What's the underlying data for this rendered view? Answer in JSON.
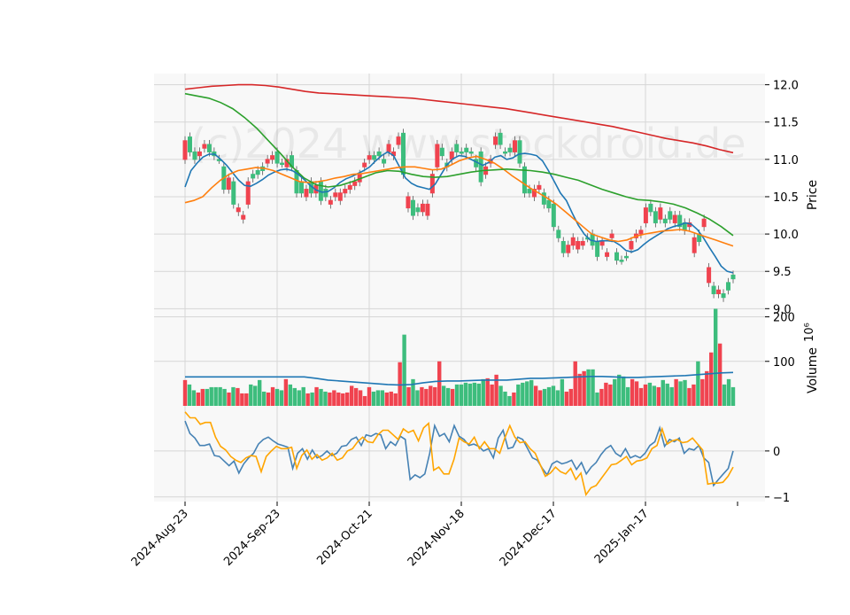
{
  "watermark": "(c)2024 www.stockdroid.de",
  "colors": {
    "up": "#3dbd7d",
    "down": "#f0434f",
    "panel_bg": "#f8f8f8",
    "grid": "#d6d6d6",
    "ma_short": "#1f77b4",
    "ma_mid": "#ff7f0e",
    "ma_long": "#2ca02c",
    "ma_xlong": "#d62728",
    "vol_avg": "#1f77b4",
    "osc_a": "#4682b4",
    "osc_b": "#ffa500"
  },
  "chart_data": [
    {
      "type": "candlestick",
      "panel": "price",
      "ylabel": "Price",
      "ylim": [
        8.98,
        12.15
      ],
      "yticks": [
        "9.0",
        "9.5",
        "10.0",
        "10.5",
        "11.0",
        "11.5",
        "12.0"
      ],
      "x_tick_labels": [
        "2024-Aug-23",
        "2024-Sep-23",
        "2024-Oct-21",
        "2024-Nov-18",
        "2024-Dec-17",
        "2025-Jan-17"
      ],
      "grid": true,
      "candles_close": [
        11.0,
        11.3,
        11.1,
        11.05,
        11.15,
        11.2,
        11.1,
        11.0,
        10.9,
        10.6,
        10.7,
        10.3,
        10.2,
        10.4,
        10.8,
        10.85,
        10.9,
        10.95,
        11.0,
        11.1,
        10.95,
        10.9,
        11.05,
        10.85,
        10.7,
        10.5,
        10.7,
        10.55,
        10.7,
        10.6,
        10.4,
        10.5,
        10.45,
        10.55,
        10.6,
        10.65,
        10.7,
        10.9,
        11.0,
        11.05,
        11.1,
        11.0,
        11.1,
        11.05,
        11.2,
        11.35,
        10.35,
        10.45,
        10.35,
        10.3,
        10.25,
        10.55,
        10.9,
        11.15,
        10.95,
        11.0,
        11.2,
        11.1,
        11.15,
        11.1,
        11.0,
        11.1,
        10.8,
        10.95,
        11.2,
        11.35,
        11.1,
        11.15,
        11.1,
        11.25,
        10.9,
        10.6,
        10.5,
        10.6,
        10.55,
        10.45,
        10.4,
        10.05,
        9.9,
        9.75,
        9.85,
        9.8,
        9.85,
        9.95,
        10.0,
        9.9,
        9.85,
        9.7,
        9.95,
        9.75,
        9.65,
        9.7,
        9.8,
        9.95,
        10.0,
        10.15,
        10.4,
        10.3,
        10.2,
        10.2,
        10.3,
        10.15,
        10.25,
        10.15,
        10.1,
        9.75,
        10.0,
        10.1,
        9.35,
        9.3,
        9.2,
        9.2,
        9.35,
        9.45
      ],
      "candles_open": [
        11.25,
        11.1,
        11.0,
        11.1,
        11.2,
        11.1,
        11.05,
        11.0,
        10.6,
        10.75,
        10.4,
        10.35,
        10.25,
        10.7,
        10.75,
        10.8,
        10.85,
        11.0,
        11.05,
        10.95,
        10.95,
        11.0,
        10.9,
        10.55,
        10.55,
        10.6,
        10.55,
        10.65,
        10.45,
        10.5,
        10.45,
        10.55,
        10.55,
        10.6,
        10.65,
        10.7,
        10.8,
        10.95,
        11.05,
        11.0,
        11.05,
        10.95,
        11.2,
        11.1,
        11.3,
        10.8,
        10.5,
        10.25,
        10.3,
        10.4,
        10.4,
        10.8,
        11.2,
        11.05,
        10.9,
        11.1,
        11.1,
        11.1,
        11.1,
        11.1,
        10.9,
        10.7,
        10.9,
        11.0,
        11.3,
        11.2,
        11.1,
        11.1,
        11.25,
        10.95,
        10.55,
        10.55,
        10.6,
        10.65,
        10.4,
        10.35,
        10.1,
        9.95,
        9.75,
        9.85,
        9.95,
        9.9,
        9.9,
        9.95,
        9.85,
        9.7,
        9.9,
        9.75,
        10.0,
        9.65,
        9.65,
        9.7,
        9.9,
        10.0,
        10.05,
        10.35,
        10.3,
        10.15,
        10.35,
        10.15,
        10.2,
        10.25,
        10.1,
        10.05,
        10.15,
        9.95,
        9.9,
        10.2,
        9.55,
        9.2,
        9.25,
        9.15,
        9.25,
        9.4
      ],
      "moving_averages": [
        {
          "values": [
            10.63,
            10.85,
            10.95,
            11.03,
            11.07,
            11.07,
            11.0,
            10.92,
            10.82,
            10.72,
            10.65,
            10.64,
            10.68,
            10.73,
            10.79,
            10.83,
            10.86,
            10.87,
            10.85,
            10.8,
            10.73,
            10.65,
            10.59,
            10.56,
            10.57,
            10.62,
            10.69,
            10.74,
            10.77,
            10.81,
            10.85,
            10.9,
            10.98,
            11.05,
            11.1,
            11.05,
            10.9,
            10.75,
            10.68,
            10.64,
            10.62,
            10.6,
            10.67,
            10.8,
            10.93,
            11.01,
            11.05,
            11.04,
            11.0,
            10.96,
            10.92,
            10.96,
            11.03,
            11.05,
            11.0,
            11.02,
            11.07,
            11.08,
            11.07,
            11.05,
            10.98,
            10.85,
            10.7,
            10.55,
            10.45,
            10.28,
            10.12,
            10.0,
            9.92,
            9.9,
            9.91,
            9.91,
            9.9,
            9.85,
            9.78,
            9.76,
            9.79,
            9.86,
            9.92,
            9.97,
            10.02,
            10.07,
            10.1,
            10.12,
            10.15,
            10.13,
            10.06,
            9.95,
            9.82,
            9.7,
            9.57,
            9.5,
            9.48
          ]
        },
        {
          "values": [
            10.42,
            10.45,
            10.5,
            10.62,
            10.72,
            10.8,
            10.85,
            10.87,
            10.89,
            10.88,
            10.85,
            10.8,
            10.75,
            10.7,
            10.69,
            10.7,
            10.72,
            10.75,
            10.77,
            10.8,
            10.81,
            10.83,
            10.85,
            10.87,
            10.89,
            10.9,
            10.9,
            10.88,
            10.86,
            10.87,
            10.92,
            10.98,
            11.02,
            11.04,
            11.0,
            10.95,
            10.87,
            10.78,
            10.7,
            10.62,
            10.55,
            10.48,
            10.4,
            10.3,
            10.2,
            10.1,
            10.0,
            9.96,
            9.92,
            9.9,
            9.92,
            9.97,
            10.0,
            10.02,
            10.04,
            10.05,
            10.06,
            10.04,
            10.0,
            9.96,
            9.92,
            9.88,
            9.84
          ]
        },
        {
          "values": [
            11.88,
            11.85,
            11.82,
            11.76,
            11.68,
            11.56,
            11.42,
            11.25,
            11.08,
            10.9,
            10.75,
            10.66,
            10.63,
            10.65,
            10.7,
            10.76,
            10.82,
            10.85,
            10.84,
            10.8,
            10.77,
            10.76,
            10.77,
            10.8,
            10.83,
            10.85,
            10.86,
            10.87,
            10.86,
            10.85,
            10.83,
            10.8,
            10.76,
            10.72,
            10.66,
            10.6,
            10.55,
            10.5,
            10.46,
            10.45,
            10.43,
            10.4,
            10.35,
            10.28,
            10.2,
            10.1,
            9.98
          ]
        },
        {
          "values": [
            11.94,
            11.96,
            11.98,
            11.99,
            12.0,
            12.0,
            11.99,
            11.97,
            11.94,
            11.91,
            11.89,
            11.88,
            11.87,
            11.86,
            11.85,
            11.84,
            11.83,
            11.82,
            11.8,
            11.78,
            11.76,
            11.74,
            11.72,
            11.7,
            11.68,
            11.65,
            11.62,
            11.59,
            11.56,
            11.53,
            11.5,
            11.47,
            11.44,
            11.4,
            11.36,
            11.32,
            11.28,
            11.25,
            11.22,
            11.18,
            11.13,
            11.09
          ]
        }
      ]
    },
    {
      "type": "bar",
      "panel": "volume",
      "ylabel": "Volume",
      "scale_label": "10⁶",
      "ylim": [
        0,
        215
      ],
      "yticks": [
        "100",
        "200"
      ],
      "values": [
        58,
        48,
        35,
        30,
        38,
        38,
        42,
        42,
        42,
        38,
        30,
        42,
        40,
        28,
        28,
        48,
        45,
        58,
        32,
        30,
        42,
        38,
        35,
        60,
        48,
        40,
        35,
        42,
        28,
        30,
        42,
        38,
        32,
        30,
        35,
        30,
        28,
        30,
        45,
        40,
        35,
        22,
        42,
        32,
        35,
        35,
        30,
        32,
        28,
        98,
        160,
        42,
        60,
        35,
        42,
        38,
        45,
        42,
        100,
        45,
        40,
        38,
        48,
        48,
        52,
        50,
        52,
        50,
        60,
        62,
        48,
        70,
        45,
        32,
        22,
        30,
        48,
        52,
        55,
        58,
        45,
        35,
        38,
        42,
        45,
        35,
        60,
        32,
        38,
        100,
        72,
        78,
        82,
        82,
        30,
        38,
        52,
        48,
        60,
        70,
        66,
        42,
        60,
        55,
        40,
        48,
        52,
        45,
        42,
        58,
        50,
        42,
        60,
        55,
        58,
        40,
        48,
        100,
        60,
        78,
        120,
        218,
        140,
        48,
        60,
        42
      ],
      "avg_values": [
        65,
        65,
        65,
        65,
        65,
        65,
        65,
        65,
        65,
        65,
        65,
        62,
        58,
        56,
        54,
        52,
        50,
        48,
        47,
        48,
        52,
        55,
        56,
        56,
        57,
        58,
        58,
        58,
        60,
        62,
        62,
        63,
        64,
        65,
        66,
        66,
        65,
        64,
        64,
        65,
        66,
        67,
        68,
        70,
        72,
        74,
        75
      ]
    },
    {
      "type": "line",
      "panel": "oscillator",
      "ylim": [
        -1.1,
        0.98
      ],
      "yticks": [
        "−1",
        "0"
      ],
      "series": [
        {
          "values": [
            0.65,
            0.38,
            0.28,
            0.12,
            0.12,
            0.15,
            -0.1,
            -0.12,
            -0.22,
            -0.32,
            -0.22,
            -0.48,
            -0.28,
            -0.15,
            -0.05,
            0.15,
            0.25,
            0.3,
            0.22,
            0.15,
            0.12,
            0.08,
            -0.38,
            -0.05,
            0.05,
            -0.18,
            0.02,
            -0.15,
            -0.1,
            0.0,
            -0.1,
            -0.05,
            0.1,
            0.12,
            0.25,
            0.3,
            0.12,
            0.35,
            0.32,
            0.38,
            0.35,
            0.05,
            0.2,
            0.12,
            0.32,
            0.25,
            -0.62,
            -0.52,
            -0.58,
            -0.5,
            -0.05,
            0.55,
            0.32,
            0.38,
            0.2,
            0.55,
            0.32,
            0.25,
            0.12,
            0.15,
            0.1,
            0.0,
            0.05,
            -0.15,
            0.28,
            0.45,
            0.05,
            0.08,
            0.3,
            0.25,
            0.05,
            -0.15,
            -0.2,
            -0.38,
            -0.52,
            -0.28,
            -0.22,
            -0.28,
            -0.25,
            -0.2,
            -0.4,
            -0.25,
            -0.5,
            -0.35,
            -0.25,
            -0.08,
            0.05,
            0.12,
            -0.05,
            -0.12,
            0.05,
            -0.15,
            -0.1,
            -0.15,
            -0.05,
            0.12,
            0.2,
            0.5,
            0.1,
            0.25,
            0.2,
            0.28,
            -0.05,
            0.05,
            0.02,
            0.12,
            -0.15,
            -0.25,
            -0.75,
            -0.62,
            -0.5,
            -0.38,
            0.0
          ]
        },
        {
          "values": [
            0.85,
            0.72,
            0.72,
            0.58,
            0.62,
            0.62,
            0.3,
            0.1,
            0.02,
            -0.12,
            -0.2,
            -0.25,
            -0.15,
            -0.1,
            -0.12,
            -0.45,
            -0.12,
            0.0,
            0.1,
            0.05,
            0.05,
            0.08,
            -0.38,
            -0.1,
            0.02,
            -0.18,
            -0.08,
            -0.2,
            -0.15,
            -0.05,
            -0.2,
            -0.15,
            0.0,
            0.05,
            0.2,
            0.3,
            0.2,
            0.18,
            0.35,
            0.45,
            0.45,
            0.35,
            0.25,
            0.48,
            0.4,
            0.45,
            0.22,
            0.5,
            0.6,
            -0.42,
            -0.35,
            -0.5,
            -0.5,
            -0.18,
            0.28,
            0.2,
            0.15,
            0.3,
            0.05,
            0.2,
            0.05,
            0.05,
            -0.05,
            0.28,
            0.55,
            0.3,
            0.18,
            0.2,
            0.05,
            -0.05,
            -0.3,
            -0.55,
            -0.48,
            -0.35,
            -0.45,
            -0.5,
            -0.38,
            -0.62,
            -0.48,
            -0.95,
            -0.8,
            -0.75,
            -0.6,
            -0.45,
            -0.3,
            -0.28,
            -0.2,
            -0.12,
            -0.3,
            -0.22,
            -0.2,
            -0.15,
            0.05,
            0.12,
            0.48,
            0.15,
            0.22,
            0.25,
            0.18,
            0.2,
            0.28,
            0.15,
            0.02,
            -0.72,
            -0.7,
            -0.7,
            -0.68,
            -0.55,
            -0.35
          ]
        }
      ]
    }
  ]
}
